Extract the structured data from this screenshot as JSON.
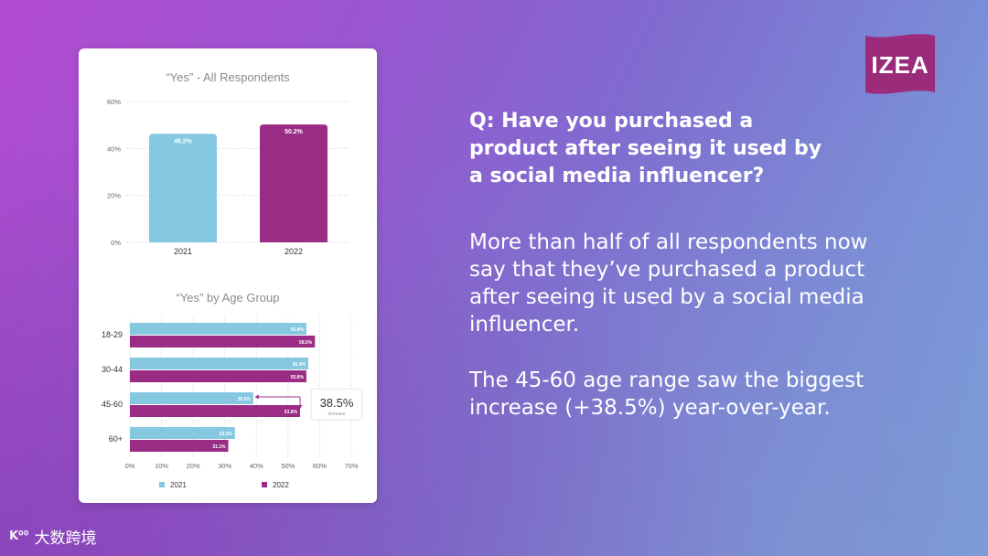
{
  "brand": {
    "logo_text": "IZEA",
    "logo_color": "#9b2c7b"
  },
  "question": "Q: Have you purchased a\nproduct after seeing it used by\na social media influencer?",
  "paragraph1": "More than half of all respondents now\nsay that they’ve purchased a product\nafter seeing it used by a social media\ninfluencer.",
  "paragraph2": "The 45-60 age range saw the biggest\nincrease (+38.5%) year-over-year.",
  "watermark": {
    "icon_text": "K⁰⁰",
    "text": "大数跨境"
  },
  "colors": {
    "c2021": "#85c8e0",
    "c2022": "#9b2c85",
    "text": "#555555"
  },
  "chart_data": [
    {
      "type": "bar",
      "title": "“Yes” - All Respondents",
      "categories": [
        "2021",
        "2022"
      ],
      "values": [
        46.2,
        50.2
      ],
      "value_labels": [
        "46.2%",
        "50.2%"
      ],
      "ylim": [
        0,
        60
      ],
      "yticks": [
        "0%",
        "20%",
        "40%",
        "60%"
      ],
      "ytick_values": [
        0,
        20,
        40,
        60
      ],
      "grid": true
    },
    {
      "type": "bar",
      "orientation": "horizontal",
      "title": "“Yes” by Age Group",
      "categories": [
        "18-29",
        "30-44",
        "45-60",
        "60+"
      ],
      "series": [
        {
          "name": "2021",
          "values": [
            55.8,
            56.4,
            39.0,
            33.2
          ],
          "labels": [
            "55.8%",
            "56.4%",
            "39.0%",
            "33.2%"
          ]
        },
        {
          "name": "2022",
          "values": [
            58.5,
            55.8,
            53.8,
            31.1
          ],
          "labels": [
            "58.5%",
            "55.8%",
            "53.8%",
            "31.1%"
          ]
        }
      ],
      "xlim": [
        0,
        70
      ],
      "xticks": [
        "0%",
        "10%",
        "20%",
        "30%",
        "40%",
        "50%",
        "60%",
        "70%"
      ],
      "xtick_values": [
        0,
        10,
        20,
        30,
        40,
        50,
        60,
        70
      ],
      "legend_position": "bottom",
      "annotation": {
        "category": "45-60",
        "value": "38.5%",
        "label": "increase"
      },
      "grid": true
    }
  ]
}
